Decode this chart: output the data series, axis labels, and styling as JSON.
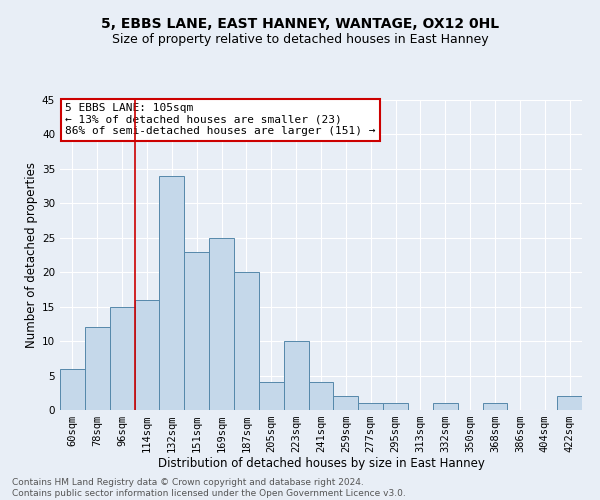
{
  "title1": "5, EBBS LANE, EAST HANNEY, WANTAGE, OX12 0HL",
  "title2": "Size of property relative to detached houses in East Hanney",
  "xlabel": "Distribution of detached houses by size in East Hanney",
  "ylabel": "Number of detached properties",
  "footnote": "Contains HM Land Registry data © Crown copyright and database right 2024.\nContains public sector information licensed under the Open Government Licence v3.0.",
  "bar_labels": [
    "60sqm",
    "78sqm",
    "96sqm",
    "114sqm",
    "132sqm",
    "151sqm",
    "169sqm",
    "187sqm",
    "205sqm",
    "223sqm",
    "241sqm",
    "259sqm",
    "277sqm",
    "295sqm",
    "313sqm",
    "332sqm",
    "350sqm",
    "368sqm",
    "386sqm",
    "404sqm",
    "422sqm"
  ],
  "bar_values": [
    6,
    12,
    15,
    16,
    34,
    23,
    25,
    20,
    4,
    10,
    4,
    2,
    1,
    1,
    0,
    1,
    0,
    1,
    0,
    0,
    2
  ],
  "bar_color": "#c5d8ea",
  "bar_edge_color": "#5588aa",
  "vline_x_pos": 2.5,
  "vline_color": "#cc0000",
  "annotation_text": "5 EBBS LANE: 105sqm\n← 13% of detached houses are smaller (23)\n86% of semi-detached houses are larger (151) →",
  "annotation_box_color": "#ffffff",
  "annotation_box_edge": "#cc0000",
  "ylim": [
    0,
    45
  ],
  "yticks": [
    0,
    5,
    10,
    15,
    20,
    25,
    30,
    35,
    40,
    45
  ],
  "bg_color": "#e8eef6",
  "plot_bg_color": "#e8eef6",
  "grid_color": "#ffffff",
  "title1_fontsize": 10,
  "title2_fontsize": 9,
  "xlabel_fontsize": 8.5,
  "ylabel_fontsize": 8.5,
  "tick_fontsize": 7.5,
  "annotation_fontsize": 8,
  "footnote_fontsize": 6.5
}
